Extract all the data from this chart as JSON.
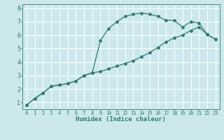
{
  "xlabel": "Humidex (Indice chaleur)",
  "bg_color": "#cce8ec",
  "grid_color": "#ffffff",
  "line_color": "#2e7d6e",
  "xlim": [
    -0.5,
    23.5
  ],
  "ylim": [
    0.5,
    8.3
  ],
  "line1_x": [
    0,
    1,
    2,
    3,
    4,
    5,
    6,
    7,
    8,
    9,
    10,
    11,
    12,
    13,
    14,
    15,
    16,
    17,
    18,
    19,
    20,
    21,
    22,
    23
  ],
  "line1_y": [
    0.8,
    1.3,
    1.7,
    2.2,
    2.3,
    2.4,
    2.6,
    3.0,
    3.2,
    5.6,
    6.5,
    7.0,
    7.4,
    7.55,
    7.65,
    7.55,
    7.4,
    7.1,
    7.1,
    6.6,
    7.0,
    6.9,
    6.05,
    5.7
  ],
  "line2_x": [
    0,
    1,
    2,
    3,
    4,
    5,
    6,
    7,
    8,
    9,
    10,
    11,
    12,
    13,
    14,
    15,
    16,
    17,
    18,
    19,
    20,
    21,
    22,
    23
  ],
  "line2_y": [
    0.8,
    1.3,
    1.7,
    2.2,
    2.3,
    2.4,
    2.6,
    3.0,
    3.2,
    3.3,
    3.5,
    3.7,
    3.9,
    4.1,
    4.4,
    4.7,
    5.1,
    5.5,
    5.8,
    6.0,
    6.35,
    6.6,
    6.05,
    5.7
  ],
  "xtick_vals": [
    0,
    1,
    2,
    3,
    4,
    5,
    6,
    7,
    8,
    9,
    10,
    11,
    12,
    13,
    14,
    15,
    16,
    17,
    18,
    19,
    20,
    21,
    22,
    23
  ],
  "xtick_labels": [
    "0",
    "1",
    "2",
    "3",
    "4",
    "5",
    "6",
    "7",
    "8",
    "9",
    "10",
    "11",
    "12",
    "13",
    "14",
    "15",
    "16",
    "17",
    "18",
    "19",
    "20",
    "21",
    "22",
    "23"
  ],
  "ytick_vals": [
    1,
    2,
    3,
    4,
    5,
    6,
    7,
    8
  ],
  "ytick_labels": [
    "1",
    "2",
    "3",
    "4",
    "5",
    "6",
    "7",
    "8"
  ],
  "marker": "D",
  "markersize": 2.0,
  "linewidth": 0.9,
  "tick_fontsize": 5.0,
  "xlabel_fontsize": 6.5
}
